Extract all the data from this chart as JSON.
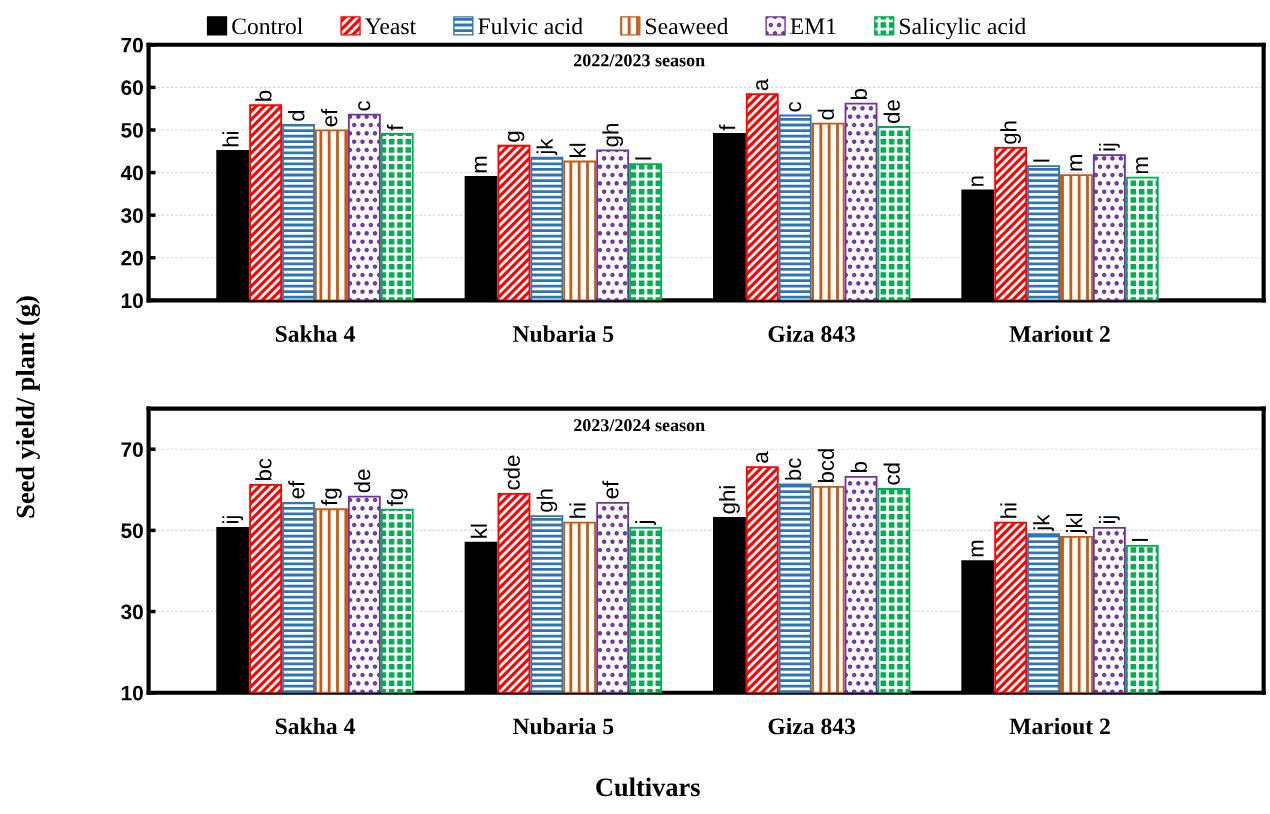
{
  "chart_data": [
    {
      "type": "bar",
      "title": "2022/2023 season",
      "ylabel": "Seed yield/ plant (g)",
      "categories": [
        "Sakha 4",
        "Nubaria 5",
        "Giza 843",
        "Mariout 2"
      ],
      "ylim": [
        10,
        70
      ],
      "yticks": [
        10,
        20,
        30,
        40,
        50,
        60,
        70
      ],
      "grid": "y",
      "legend": "top",
      "series": [
        {
          "name": "Control",
          "color": "#000000",
          "values": [
            45.1,
            39.0,
            49.1,
            35.8
          ],
          "value_labels": [
            "hi",
            "m",
            "f",
            "n"
          ]
        },
        {
          "name": "Yeast",
          "color": "#ff0000",
          "values": [
            55.8,
            46.3,
            58.4,
            45.8
          ],
          "value_labels": [
            "b",
            "g",
            "a",
            "gh"
          ]
        },
        {
          "name": "Fulvic acid",
          "color": "#2e75b6",
          "values": [
            51.2,
            43.5,
            53.4,
            41.5
          ],
          "value_labels": [
            "d",
            "jk",
            "c",
            "l"
          ]
        },
        {
          "name": "Seaweed",
          "color": "#c55a11",
          "values": [
            49.9,
            42.6,
            51.5,
            39.4
          ],
          "value_labels": [
            "ef",
            "kl",
            "d",
            "m"
          ]
        },
        {
          "name": "EM1",
          "color": "#7030a0",
          "values": [
            53.6,
            45.2,
            56.2,
            44.1
          ],
          "value_labels": [
            "c",
            "gh",
            "b",
            "ij"
          ]
        },
        {
          "name": "Salicylic acid",
          "color": "#00b050",
          "values": [
            49.1,
            42.0,
            50.7,
            38.8
          ],
          "value_labels": [
            "f",
            "l",
            "de",
            "m"
          ]
        }
      ]
    },
    {
      "type": "bar",
      "title": "2023/2024 season",
      "xlabel": "Cultivars",
      "categories": [
        "Sakha 4",
        "Nubaria 5",
        "Giza 843",
        "Mariout 2"
      ],
      "ylim": [
        10,
        80
      ],
      "yticks": [
        10,
        30,
        50,
        70
      ],
      "grid": "y",
      "series": [
        {
          "color": "#000000",
          "values": [
            50.6,
            47.0,
            53.1,
            42.4
          ],
          "value_labels": [
            "ij",
            "kl",
            "ghi",
            "m"
          ]
        },
        {
          "color": "#ff0000",
          "values": [
            61.2,
            59.0,
            65.6,
            51.9
          ],
          "value_labels": [
            "bc",
            "cde",
            "a",
            "hi"
          ]
        },
        {
          "color": "#2e75b6",
          "values": [
            56.8,
            53.5,
            61.3,
            49.1
          ],
          "value_labels": [
            "ef",
            "gh",
            "bc",
            "jk"
          ]
        },
        {
          "color": "#c55a11",
          "values": [
            55.2,
            51.9,
            60.7,
            48.4
          ],
          "value_labels": [
            "fg",
            "hi",
            "bcd",
            "jkl"
          ]
        },
        {
          "color": "#7030a0",
          "values": [
            58.3,
            56.8,
            63.2,
            50.6
          ],
          "value_labels": [
            "de",
            "ef",
            "b",
            "ij"
          ]
        },
        {
          "color": "#00b050",
          "values": [
            55.1,
            50.6,
            60.2,
            46.2
          ],
          "value_labels": [
            "fg",
            "j",
            "cd",
            "l"
          ]
        }
      ]
    }
  ]
}
